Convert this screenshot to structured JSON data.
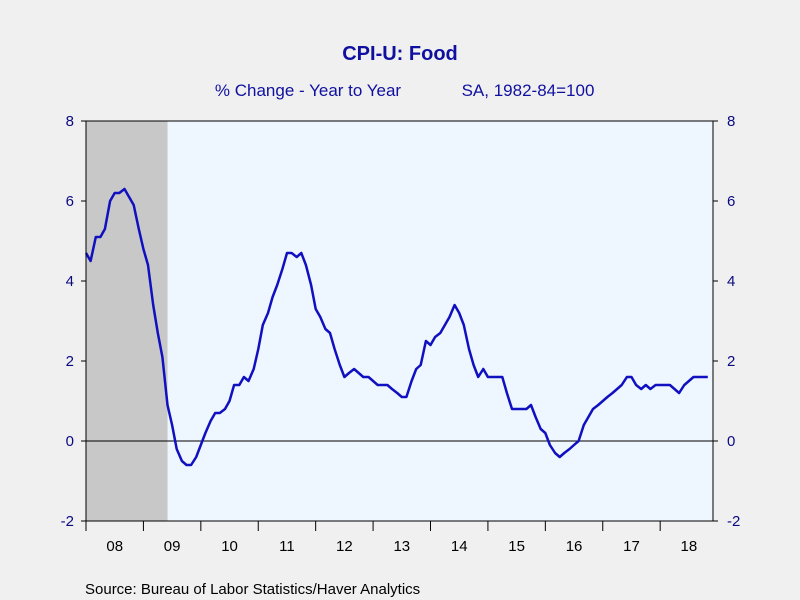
{
  "chart_data": {
    "type": "line",
    "title": "CPI-U: Food",
    "subtitle": "% Change - Year to Year",
    "subtitle_note": "SA, 1982-84=100",
    "source": "Source:  Bureau of Labor Statistics/Haver Analytics",
    "xlim": [
      2008.0,
      2018.92
    ],
    "ylim": [
      -2,
      8
    ],
    "y_ticks": [
      -2,
      0,
      2,
      4,
      6,
      8
    ],
    "x_tick_labels": [
      "08",
      "09",
      "10",
      "11",
      "12",
      "13",
      "14",
      "15",
      "16",
      "17",
      "18"
    ],
    "grid": false,
    "zero_line": true,
    "recession_shading": [
      [
        2008.0,
        2009.42
      ]
    ],
    "colors": {
      "line": "#1010c0",
      "plot_background": "#eef6ff",
      "recession": "#c8c8c8",
      "text": "#1010a0"
    },
    "series": [
      {
        "x": [
          2008.0,
          2008.08,
          2008.17,
          2008.25,
          2008.33,
          2008.42,
          2008.5,
          2008.58,
          2008.67,
          2008.75,
          2008.83,
          2008.92,
          2009.0,
          2009.08,
          2009.17,
          2009.25,
          2009.33,
          2009.42,
          2009.5,
          2009.58,
          2009.67,
          2009.75,
          2009.83,
          2009.92,
          2010.0,
          2010.08,
          2010.17,
          2010.25,
          2010.33,
          2010.42,
          2010.5,
          2010.58,
          2010.67,
          2010.75,
          2010.83,
          2010.92,
          2011.0,
          2011.08,
          2011.17,
          2011.25,
          2011.33,
          2011.42,
          2011.5,
          2011.58,
          2011.67,
          2011.75,
          2011.83,
          2011.92,
          2012.0,
          2012.08,
          2012.17,
          2012.25,
          2012.33,
          2012.42,
          2012.5,
          2012.58,
          2012.67,
          2012.75,
          2012.83,
          2012.92,
          2013.0,
          2013.08,
          2013.17,
          2013.25,
          2013.33,
          2013.42,
          2013.5,
          2013.58,
          2013.67,
          2013.75,
          2013.83,
          2013.92,
          2014.0,
          2014.08,
          2014.17,
          2014.25,
          2014.33,
          2014.42,
          2014.5,
          2014.58,
          2014.67,
          2014.75,
          2014.83,
          2014.92,
          2015.0,
          2015.08,
          2015.17,
          2015.25,
          2015.33,
          2015.42,
          2015.5,
          2015.58,
          2015.67,
          2015.75,
          2015.83,
          2015.92,
          2016.0,
          2016.08,
          2016.17,
          2016.25,
          2016.33,
          2016.42,
          2016.5,
          2016.58,
          2016.67,
          2016.75,
          2016.83,
          2016.92,
          2017.0,
          2017.08,
          2017.17,
          2017.25,
          2017.33,
          2017.42,
          2017.5,
          2017.58,
          2017.67,
          2017.75,
          2017.83,
          2017.92,
          2018.0,
          2018.08,
          2018.17,
          2018.25,
          2018.33,
          2018.42,
          2018.5,
          2018.58,
          2018.67,
          2018.75,
          2018.83
        ],
        "values": [
          4.7,
          4.5,
          5.1,
          5.1,
          5.3,
          6.0,
          6.2,
          6.2,
          6.3,
          6.1,
          5.9,
          5.3,
          4.8,
          4.4,
          3.4,
          2.7,
          2.1,
          0.9,
          0.4,
          -0.2,
          -0.5,
          -0.6,
          -0.6,
          -0.4,
          -0.1,
          0.2,
          0.5,
          0.7,
          0.7,
          0.8,
          1.0,
          1.4,
          1.4,
          1.6,
          1.5,
          1.8,
          2.3,
          2.9,
          3.2,
          3.6,
          3.9,
          4.3,
          4.7,
          4.7,
          4.6,
          4.7,
          4.4,
          3.9,
          3.3,
          3.1,
          2.8,
          2.7,
          2.3,
          1.9,
          1.6,
          1.7,
          1.8,
          1.7,
          1.6,
          1.6,
          1.5,
          1.4,
          1.4,
          1.4,
          1.3,
          1.2,
          1.1,
          1.1,
          1.5,
          1.8,
          1.9,
          2.5,
          2.4,
          2.6,
          2.7,
          2.9,
          3.1,
          3.4,
          3.2,
          2.9,
          2.3,
          1.9,
          1.6,
          1.8,
          1.6,
          1.6,
          1.6,
          1.6,
          1.2,
          0.8,
          0.8,
          0.8,
          0.8,
          0.9,
          0.6,
          0.3,
          0.2,
          -0.1,
          -0.3,
          -0.4,
          -0.3,
          -0.2,
          -0.1,
          0.0,
          0.4,
          0.6,
          0.8,
          0.9,
          1.0,
          1.1,
          1.2,
          1.3,
          1.4,
          1.6,
          1.6,
          1.4,
          1.3,
          1.4,
          1.3,
          1.4,
          1.4,
          1.4,
          1.4,
          1.3,
          1.2,
          1.4,
          1.5,
          1.6,
          1.6,
          1.6,
          1.6
        ]
      }
    ]
  }
}
